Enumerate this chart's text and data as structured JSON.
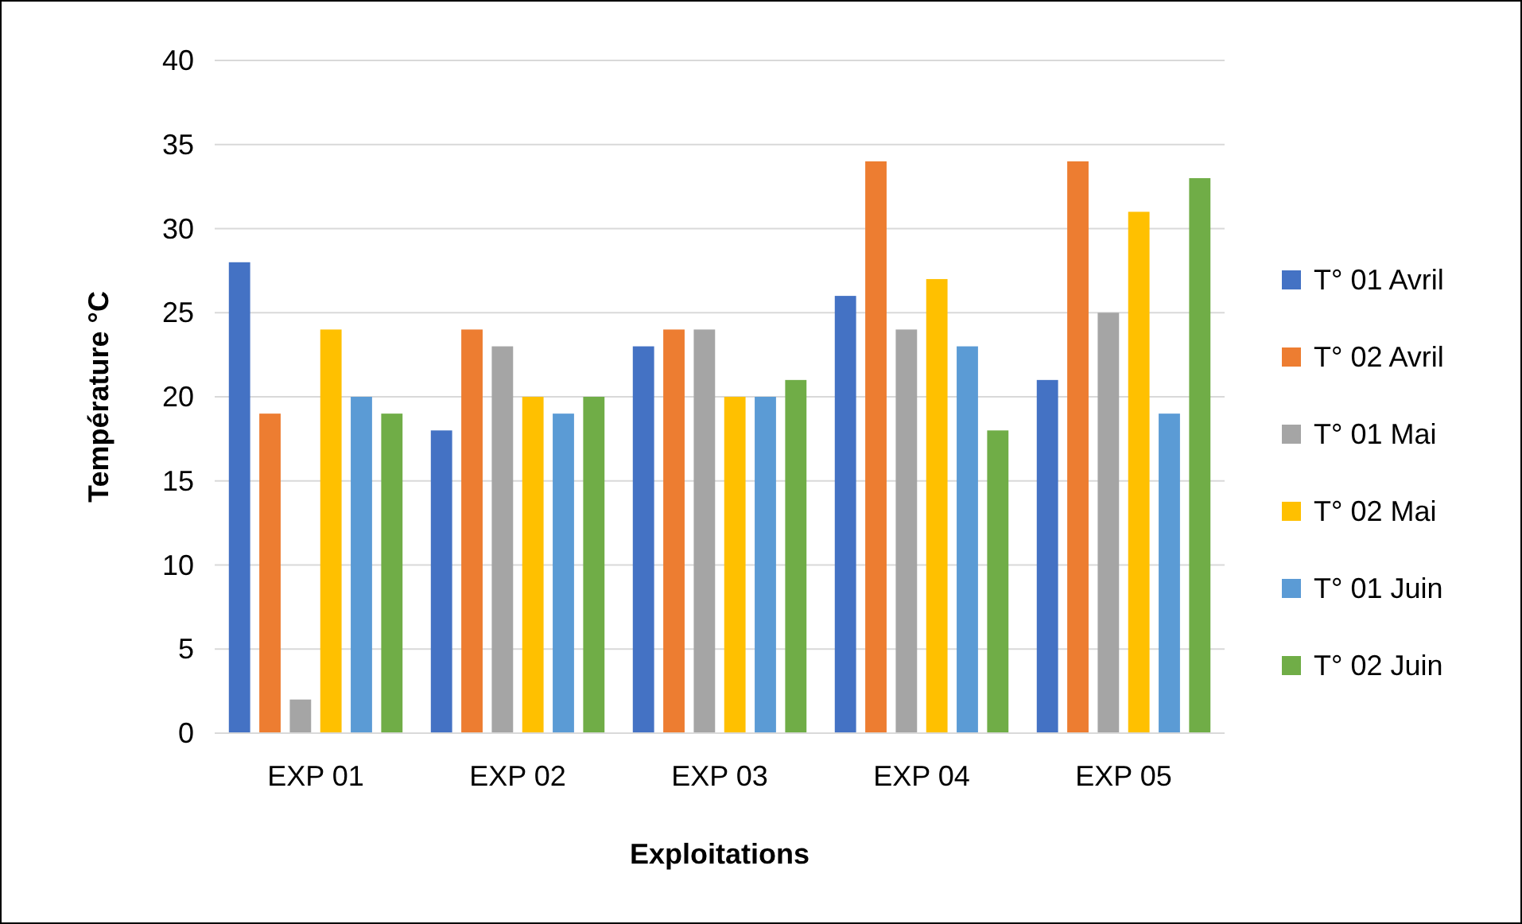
{
  "chart_data": {
    "type": "bar",
    "xlabel": "Exploitations",
    "ylabel": "Température °C",
    "categories": [
      "EXP 01",
      "EXP 02",
      "EXP 03",
      "EXP 04",
      "EXP 05"
    ],
    "series": [
      {
        "name": "T° 01 Avril",
        "color": "#4472c4",
        "values": [
          28,
          18,
          23,
          26,
          21
        ]
      },
      {
        "name": "T° 02 Avril",
        "color": "#ed7d31",
        "values": [
          19,
          24,
          24,
          34,
          34
        ]
      },
      {
        "name": "T° 01 Mai",
        "color": "#a5a5a5",
        "values": [
          2,
          23,
          24,
          24,
          25
        ]
      },
      {
        "name": "T° 02 Mai",
        "color": "#ffc000",
        "values": [
          24,
          20,
          20,
          27,
          31
        ]
      },
      {
        "name": "T° 01 Juin",
        "color": "#5b9bd5",
        "values": [
          20,
          19,
          20,
          23,
          19
        ]
      },
      {
        "name": "T° 02 Juin",
        "color": "#70ad47",
        "values": [
          19,
          20,
          21,
          18,
          33
        ]
      }
    ],
    "ylim": [
      0,
      40
    ],
    "yticks": [
      0,
      5,
      10,
      15,
      20,
      25,
      30,
      35,
      40
    ],
    "grid": "y",
    "legend": "right"
  }
}
